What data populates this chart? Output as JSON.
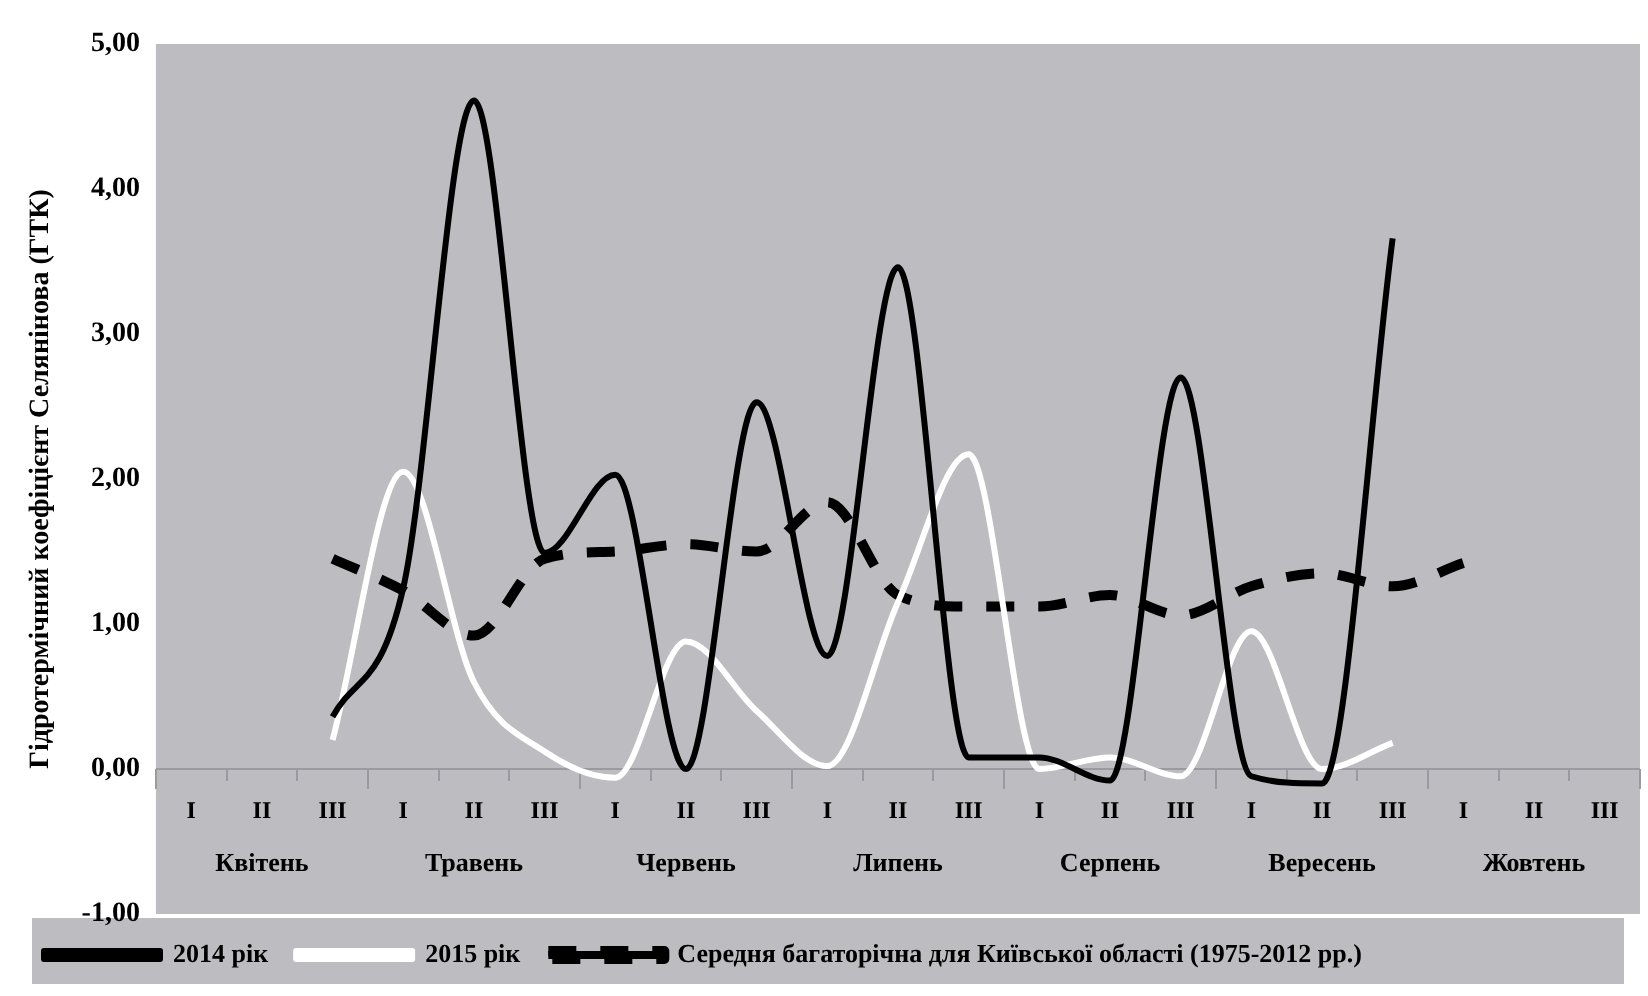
{
  "chart_data": {
    "type": "line",
    "ylabel": "Гідротермічний коефіцієнт Селянінова (ГТК)",
    "categories": [
      "I",
      "II",
      "III",
      "I",
      "II",
      "III",
      "I",
      "II",
      "III",
      "I",
      "II",
      "III",
      "I",
      "II",
      "III",
      "I",
      "II",
      "III",
      "I",
      "II",
      "III"
    ],
    "annotations": [
      "Квітень",
      "Травень",
      "Червень",
      "Липень",
      "Серпень",
      "Вересень",
      "Жовтень"
    ],
    "series": [
      {
        "name": "2014 рік",
        "color": "#000000",
        "line_style": "solid",
        "values": [
          null,
          null,
          0.36,
          1.25,
          4.61,
          1.49,
          2.03,
          0.0,
          2.53,
          0.78,
          3.46,
          0.08,
          0.08,
          -0.08,
          2.7,
          -0.05,
          -0.1,
          3.66,
          null,
          null,
          null
        ]
      },
      {
        "name": "2015 рік",
        "color": "#ffffff",
        "line_style": "solid",
        "values": [
          null,
          null,
          0.2,
          2.05,
          0.6,
          0.12,
          -0.06,
          0.88,
          0.4,
          0.02,
          1.15,
          2.17,
          0.0,
          0.08,
          -0.05,
          0.95,
          0.0,
          0.18,
          null,
          null,
          null
        ]
      },
      {
        "name": "Середня багаторічна для Київської області (1975-2012 рр.)",
        "color": "#000000",
        "line_style": "dashed",
        "values": [
          null,
          null,
          1.45,
          1.23,
          0.92,
          1.45,
          1.5,
          1.55,
          1.5,
          1.84,
          1.2,
          1.12,
          1.12,
          1.2,
          1.06,
          1.26,
          1.35,
          1.26,
          1.42,
          null,
          null
        ]
      }
    ],
    "ylim": [
      -1,
      5
    ],
    "yticks": [
      {
        "value": -1,
        "label": "-1,00"
      },
      {
        "value": 0,
        "label": "0,00"
      },
      {
        "value": 1,
        "label": "1,00"
      },
      {
        "value": 2,
        "label": "2,00"
      },
      {
        "value": 3,
        "label": "3,00"
      },
      {
        "value": 4,
        "label": "4,00"
      },
      {
        "value": 5,
        "label": "5,00"
      }
    ],
    "legend": "bottom",
    "grid": false,
    "marker": "none"
  }
}
